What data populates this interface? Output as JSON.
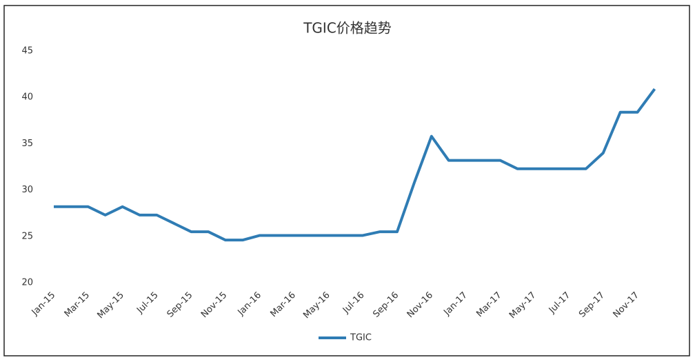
{
  "chart_data": {
    "type": "line",
    "title": "TGIC价格趋势",
    "categories": [
      "Jan-15",
      null,
      "Mar-15",
      null,
      "May-15",
      null,
      "Jul-15",
      null,
      "Sep-15",
      null,
      "Nov-15",
      null,
      "Jan-16",
      null,
      "Mar-16",
      null,
      "May-16",
      null,
      "Jul-16",
      null,
      "Sep-16",
      null,
      "Nov-16",
      null,
      "Jan-17",
      null,
      "Mar-17",
      null,
      "May-17",
      null,
      "Jul-17",
      null,
      "Sep-17",
      null,
      "Nov-17",
      null
    ],
    "series": [
      {
        "name": "TGIC",
        "color": "#2f7cb4",
        "values": [
          28.2,
          28.2,
          28.2,
          27.3,
          28.2,
          27.3,
          27.3,
          26.4,
          25.5,
          25.5,
          24.6,
          24.6,
          25.1,
          25.1,
          25.1,
          25.1,
          25.1,
          25.1,
          25.1,
          25.5,
          25.5,
          30.8,
          35.8,
          33.2,
          33.2,
          33.2,
          33.2,
          32.3,
          32.3,
          32.3,
          32.3,
          32.3,
          34.0,
          38.4,
          38.4,
          40.9
        ]
      }
    ],
    "ylim": [
      20,
      45
    ],
    "yticks": [
      20,
      25,
      30,
      35,
      40,
      45
    ],
    "grid": false,
    "legend": "bottom"
  }
}
